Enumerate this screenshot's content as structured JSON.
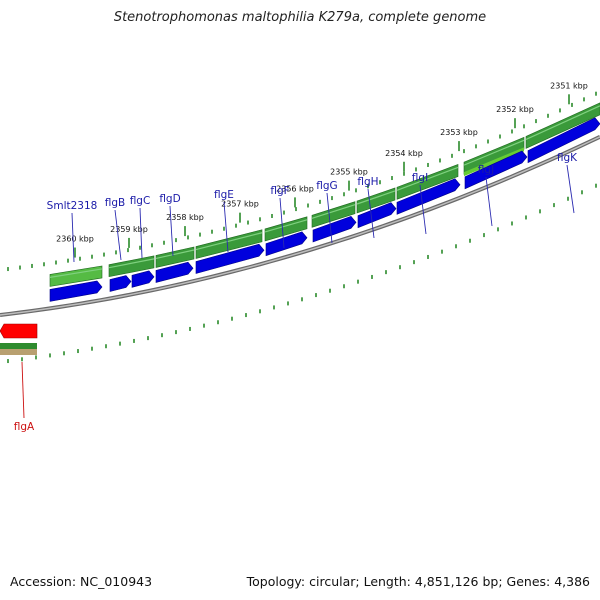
{
  "title": "Stenotrophomonas maltophilia K279a, complete genome",
  "footer": {
    "accession": "Accession: NC_010943",
    "summary": "Topology: circular; Length: 4,851,126 bp; Genes: 4,386"
  },
  "colors": {
    "backbone": "#888888",
    "forward_gene": "#0000dd",
    "reverse_gene": "#ff0000",
    "forward_label": "#1a1aa8",
    "reverse_label": "#cc1111",
    "tick": "#2a8a2a",
    "feature_green": "#3a9a3a",
    "feature_light": "#66cc33"
  },
  "ticks": [
    {
      "label": "2360 kbp"
    },
    {
      "label": "2359 kbp"
    },
    {
      "label": "2358 kbp"
    },
    {
      "label": "2357 kbp"
    },
    {
      "label": "2356 kbp"
    },
    {
      "label": "2355 kbp"
    },
    {
      "label": "2354 kbp"
    },
    {
      "label": "2353 kbp"
    },
    {
      "label": "2352 kbp"
    },
    {
      "label": "2351 kbp"
    }
  ],
  "genes": [
    {
      "name": "Smlt2318",
      "strand": "forward"
    },
    {
      "name": "flgB",
      "strand": "forward"
    },
    {
      "name": "flgC",
      "strand": "forward"
    },
    {
      "name": "flgD",
      "strand": "forward"
    },
    {
      "name": "flgE",
      "strand": "forward"
    },
    {
      "name": "flgF",
      "strand": "forward"
    },
    {
      "name": "flgG",
      "strand": "forward"
    },
    {
      "name": "flgH",
      "strand": "forward"
    },
    {
      "name": "flgI",
      "strand": "forward"
    },
    {
      "name": "flgJ",
      "strand": "forward"
    },
    {
      "name": "flgK",
      "strand": "forward"
    },
    {
      "name": "flgA",
      "strand": "reverse"
    }
  ]
}
